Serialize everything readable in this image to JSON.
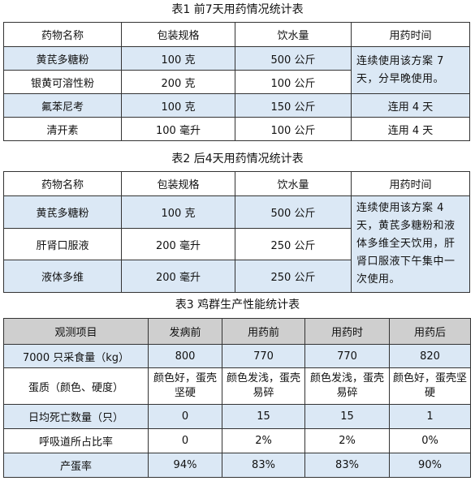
{
  "table1": {
    "caption": "表1 前7天用药情况统计表",
    "headers": [
      "药物名称",
      "包装规格",
      "饮水量",
      "用药时间"
    ],
    "rows": [
      [
        "黄芪多糖粉",
        "100 克",
        "500 公斤"
      ],
      [
        "银黄可溶性粉",
        "200 克",
        "100 公斤"
      ],
      [
        "氟苯尼考",
        "100 克",
        "150 公斤",
        "连用 4 天"
      ],
      [
        "清开素",
        "100 毫升",
        "100 公斤",
        "连用 4 天"
      ]
    ],
    "merged_note": "连续使用该方案 7 天，分早晚使用。"
  },
  "table2": {
    "caption": "表2 后4天用药情况统计表",
    "headers": [
      "药物名称",
      "包装规格",
      "饮水量",
      "用药时间"
    ],
    "rows": [
      [
        "黄芪多糖粉",
        "100 克",
        "500 公斤"
      ],
      [
        "肝肾口服液",
        "200 毫升",
        "250 公斤"
      ],
      [
        "液体多维",
        "200 毫升",
        "250 公斤"
      ]
    ],
    "merged_note": "连续使用该方案 4 天，黄芪多糖粉和液体多维全天饮用，肝肾口服液下午集中一次使用。"
  },
  "table3": {
    "caption": "表3 鸡群生产性能统计表",
    "headers": [
      "观测项目",
      "发病前",
      "用药前",
      "用药时",
      "用药后"
    ],
    "rows": [
      [
        "7000 只采食量（kg）",
        "800",
        "770",
        "770",
        "820"
      ],
      [
        "蛋质（颜色、硬度）",
        "颜色好，蛋壳坚硬",
        "颜色发浅，蛋壳易碎",
        "颜色发浅，蛋壳易碎",
        "颜色好，蛋壳坚硬"
      ],
      [
        "日均死亡数量（只）",
        "0",
        "15",
        "15",
        "1"
      ],
      [
        "呼吸道所占比率",
        "0",
        "2%",
        "2%",
        "0%"
      ],
      [
        "产蛋率",
        "94%",
        "83%",
        "83%",
        "90%"
      ]
    ]
  }
}
